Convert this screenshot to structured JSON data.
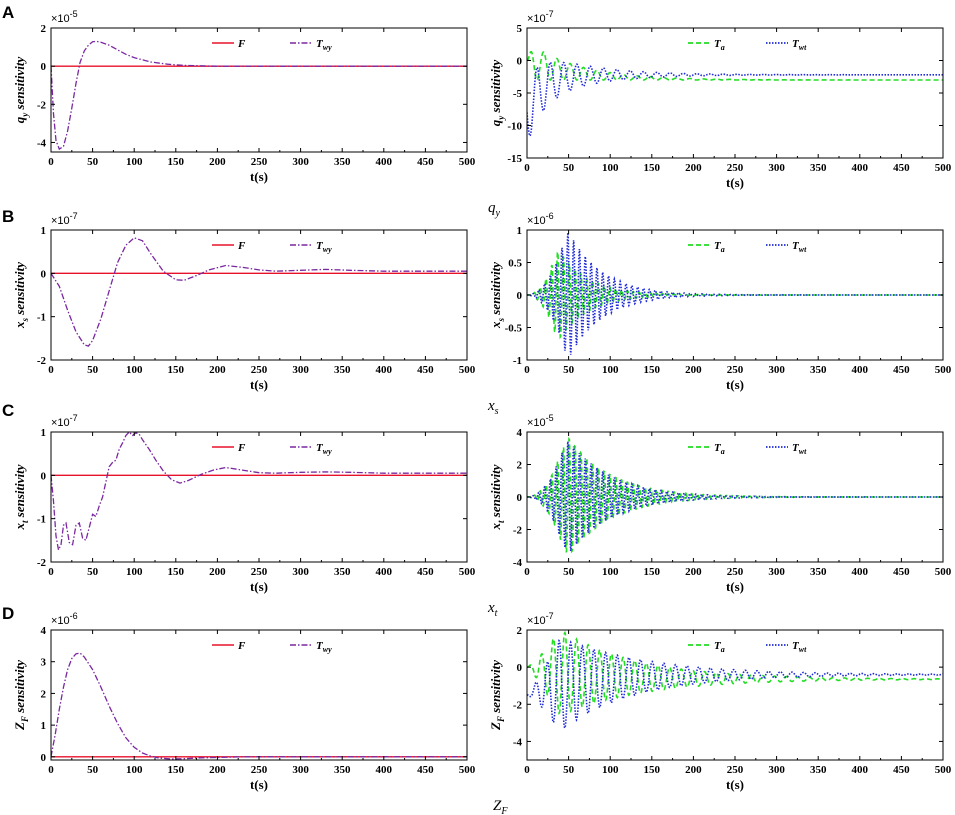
{
  "panels": [
    {
      "letter": "A",
      "caption": "q",
      "caption_sub": "y"
    },
    {
      "letter": "B",
      "caption": "x",
      "caption_sub": "s"
    },
    {
      "letter": "C",
      "caption": "x",
      "caption_sub": "t"
    },
    {
      "letter": "D",
      "caption": "Z",
      "caption_sub": "F"
    }
  ],
  "colors": {
    "F": "#e8102a",
    "Twy": "#7a28a0",
    "Ta": "#22dd22",
    "Twt": "#1f2bd8"
  },
  "chart_data": [
    {
      "id": "A-left",
      "type": "line",
      "ylabel": "q",
      "ylabel_sub": "y",
      "ylabel_rest": " sensitivity",
      "xlabel": "t(s)",
      "exp_base": "×10",
      "exp_power": "-5",
      "xlim": [
        0,
        500
      ],
      "ylim": [
        -4.5,
        2
      ],
      "xticks": [
        0,
        50,
        100,
        150,
        200,
        250,
        300,
        350,
        400,
        450,
        500
      ],
      "yticks": [
        -4,
        -2,
        0,
        2
      ],
      "series": [
        {
          "name": "F",
          "legend_main": "F",
          "legend_sub": "",
          "color_key": "F",
          "dash": "",
          "points": [
            [
              0,
              0
            ],
            [
              500,
              0
            ]
          ]
        },
        {
          "name": "Twy",
          "legend_main": "T",
          "legend_sub": "wy",
          "color_key": "Twy",
          "dash": "6,2,1.5,2",
          "points": [
            [
              0,
              0
            ],
            [
              3,
              -2.5
            ],
            [
              6,
              -3.9
            ],
            [
              10,
              -4.35
            ],
            [
              15,
              -4.2
            ],
            [
              20,
              -3.4
            ],
            [
              25,
              -2.2
            ],
            [
              30,
              -0.9
            ],
            [
              35,
              0.2
            ],
            [
              40,
              0.8
            ],
            [
              45,
              1.1
            ],
            [
              50,
              1.28
            ],
            [
              55,
              1.3
            ],
            [
              60,
              1.25
            ],
            [
              70,
              1.1
            ],
            [
              80,
              0.85
            ],
            [
              90,
              0.62
            ],
            [
              100,
              0.45
            ],
            [
              120,
              0.22
            ],
            [
              140,
              0.1
            ],
            [
              160,
              0.04
            ],
            [
              180,
              0.02
            ],
            [
              200,
              0
            ],
            [
              500,
              0
            ]
          ]
        }
      ]
    },
    {
      "id": "A-right",
      "type": "line",
      "ylabel": "q",
      "ylabel_sub": "y",
      "ylabel_rest": " sensitivity",
      "xlabel": "t(s)",
      "exp_base": "×10",
      "exp_power": "-7",
      "xlim": [
        0,
        500
      ],
      "ylim": [
        -15,
        5
      ],
      "xticks": [
        0,
        50,
        100,
        150,
        200,
        250,
        300,
        350,
        400,
        450,
        500
      ],
      "yticks": [
        -15,
        -10,
        -5,
        0,
        5
      ],
      "series": [
        {
          "name": "Ta",
          "legend_main": "T",
          "legend_sub": "a",
          "color_key": "Ta",
          "dash": "5,3",
          "osc": {
            "base_start": 0,
            "base_end": -3,
            "tau_base": 60,
            "amp": 3,
            "tau_amp": 60,
            "period": 16,
            "phase": 0,
            "ramp": 8
          }
        },
        {
          "name": "Twt",
          "legend_main": "T",
          "legend_sub": "wt",
          "color_key": "Twt",
          "dash": "1.5,1.5",
          "osc": {
            "base_start": -8,
            "base_end": -2.2,
            "tau_base": 18,
            "amp": 5,
            "tau_amp": 60,
            "period": 16,
            "phase": 3.14,
            "ramp": 0
          }
        }
      ]
    },
    {
      "id": "B-left",
      "type": "line",
      "ylabel": "x",
      "ylabel_sub": "s",
      "ylabel_rest": " sensitivity",
      "xlabel": "t(s)",
      "exp_base": "×10",
      "exp_power": "-7",
      "xlim": [
        0,
        500
      ],
      "ylim": [
        -2,
        1
      ],
      "xticks": [
        0,
        50,
        100,
        150,
        200,
        250,
        300,
        350,
        400,
        450,
        500
      ],
      "yticks": [
        -2,
        -1,
        0,
        1
      ],
      "series": [
        {
          "name": "F",
          "legend_main": "F",
          "legend_sub": "",
          "color_key": "F",
          "dash": "",
          "points": [
            [
              0,
              0
            ],
            [
              500,
              0
            ]
          ]
        },
        {
          "name": "Twy",
          "legend_main": "T",
          "legend_sub": "wy",
          "color_key": "Twy",
          "dash": "6,2,1.5,2",
          "points": [
            [
              0,
              0
            ],
            [
              10,
              -0.3
            ],
            [
              20,
              -0.85
            ],
            [
              30,
              -1.35
            ],
            [
              40,
              -1.65
            ],
            [
              45,
              -1.68
            ],
            [
              50,
              -1.55
            ],
            [
              60,
              -1.05
            ],
            [
              70,
              -0.4
            ],
            [
              80,
              0.25
            ],
            [
              90,
              0.65
            ],
            [
              100,
              0.82
            ],
            [
              110,
              0.75
            ],
            [
              120,
              0.45
            ],
            [
              135,
              0.05
            ],
            [
              150,
              -0.15
            ],
            [
              160,
              -0.16
            ],
            [
              175,
              -0.05
            ],
            [
              190,
              0.08
            ],
            [
              210,
              0.18
            ],
            [
              230,
              0.14
            ],
            [
              250,
              0.08
            ],
            [
              270,
              0.05
            ],
            [
              300,
              0.07
            ],
            [
              330,
              0.09
            ],
            [
              360,
              0.07
            ],
            [
              400,
              0.05
            ],
            [
              450,
              0.05
            ],
            [
              500,
              0.05
            ]
          ]
        }
      ]
    },
    {
      "id": "B-right",
      "type": "line",
      "ylabel": "x",
      "ylabel_sub": "s",
      "ylabel_rest": " sensitivity",
      "xlabel": "t(s)",
      "exp_base": "×10",
      "exp_power": "-6",
      "xlim": [
        0,
        500
      ],
      "ylim": [
        -1,
        1
      ],
      "xticks": [
        0,
        50,
        100,
        150,
        200,
        250,
        300,
        350,
        400,
        450,
        500
      ],
      "yticks": [
        -1,
        -0.5,
        0,
        0.5,
        1
      ],
      "series": [
        {
          "name": "Ta",
          "legend_main": "T",
          "legend_sub": "a",
          "color_key": "Ta",
          "dash": "5,3",
          "osc": {
            "base_start": 0,
            "base_end": 0,
            "tau_base": 50,
            "amp": 0.7,
            "tau_amp": 22,
            "amp_peak_t": 38,
            "period": 7,
            "phase": 0,
            "ramp": 0
          }
        },
        {
          "name": "Twt",
          "legend_main": "T",
          "legend_sub": "wt",
          "color_key": "Twt",
          "dash": "1.5,1.5",
          "osc": {
            "base_start": 0,
            "base_end": 0,
            "tau_base": 50,
            "amp": 0.98,
            "tau_amp": 25,
            "amp_peak_t": 50,
            "period": 7,
            "phase": 1.5,
            "ramp": 0
          }
        }
      ]
    },
    {
      "id": "C-left",
      "type": "line",
      "ylabel": "x",
      "ylabel_sub": "t",
      "ylabel_rest": " sensitivity",
      "xlabel": "t(s)",
      "exp_base": "×10",
      "exp_power": "-7",
      "xlim": [
        0,
        500
      ],
      "ylim": [
        -2,
        1
      ],
      "xticks": [
        0,
        50,
        100,
        150,
        200,
        250,
        300,
        350,
        400,
        450,
        500
      ],
      "yticks": [
        -2,
        -1,
        0,
        1
      ],
      "series": [
        {
          "name": "F",
          "legend_main": "F",
          "legend_sub": "",
          "color_key": "F",
          "dash": "",
          "points": [
            [
              0,
              0
            ],
            [
              500,
              0
            ]
          ]
        },
        {
          "name": "Twy",
          "legend_main": "T",
          "legend_sub": "wy",
          "color_key": "Twy",
          "dash": "6,2,1.5,2",
          "points": [
            [
              0,
              0
            ],
            [
              3,
              -0.6
            ],
            [
              6,
              -1.4
            ],
            [
              9,
              -1.72
            ],
            [
              12,
              -1.6
            ],
            [
              15,
              -1.15
            ],
            [
              18,
              -1.1
            ],
            [
              22,
              -1.55
            ],
            [
              26,
              -1.6
            ],
            [
              30,
              -1.15
            ],
            [
              34,
              -1.1
            ],
            [
              38,
              -1.45
            ],
            [
              42,
              -1.5
            ],
            [
              46,
              -1.2
            ],
            [
              50,
              -0.9
            ],
            [
              54,
              -0.95
            ],
            [
              58,
              -0.7
            ],
            [
              62,
              -0.5
            ],
            [
              66,
              -0.15
            ],
            [
              70,
              0.2
            ],
            [
              74,
              0.3
            ],
            [
              78,
              0.35
            ],
            [
              82,
              0.6
            ],
            [
              86,
              0.75
            ],
            [
              90,
              0.92
            ],
            [
              94,
              1.0
            ],
            [
              98,
              0.92
            ],
            [
              102,
              0.98
            ],
            [
              106,
              0.95
            ],
            [
              110,
              0.82
            ],
            [
              118,
              0.6
            ],
            [
              126,
              0.35
            ],
            [
              135,
              0.1
            ],
            [
              145,
              -0.1
            ],
            [
              155,
              -0.18
            ],
            [
              165,
              -0.12
            ],
            [
              180,
              0.02
            ],
            [
              195,
              0.12
            ],
            [
              210,
              0.18
            ],
            [
              230,
              0.12
            ],
            [
              250,
              0.06
            ],
            [
              270,
              0.05
            ],
            [
              300,
              0.07
            ],
            [
              330,
              0.08
            ],
            [
              360,
              0.07
            ],
            [
              400,
              0.05
            ],
            [
              450,
              0.05
            ],
            [
              500,
              0.05
            ]
          ]
        }
      ]
    },
    {
      "id": "C-right",
      "type": "line",
      "ylabel": "x",
      "ylabel_sub": "t",
      "ylabel_rest": " sensitivity",
      "xlabel": "t(s)",
      "exp_base": "×10",
      "exp_power": "-5",
      "xlim": [
        0,
        500
      ],
      "ylim": [
        -4,
        4
      ],
      "xticks": [
        0,
        50,
        100,
        150,
        200,
        250,
        300,
        350,
        400,
        450,
        500
      ],
      "yticks": [
        -4,
        -2,
        0,
        2,
        4
      ],
      "series": [
        {
          "name": "Ta",
          "legend_main": "T",
          "legend_sub": "a",
          "color_key": "Ta",
          "dash": "5,3",
          "osc": {
            "base_start": 0,
            "base_end": 0,
            "tau_base": 50,
            "amp": 3.7,
            "tau_amp": 32,
            "amp_peak_t": 50,
            "period": 7,
            "phase": 0,
            "ramp": 0
          }
        },
        {
          "name": "Twt",
          "legend_main": "T",
          "legend_sub": "wt",
          "color_key": "Twt",
          "dash": "1.5,1.5",
          "osc": {
            "base_start": 0,
            "base_end": 0,
            "tau_base": 50,
            "amp": 3.5,
            "tau_amp": 32,
            "amp_peak_t": 50,
            "period": 7,
            "phase": 1.5,
            "ramp": 0
          }
        }
      ]
    },
    {
      "id": "D-left",
      "type": "line",
      "ylabel": "Z",
      "ylabel_sub": "F",
      "ylabel_rest": " sensitivity",
      "xlabel": "t(s)",
      "exp_base": "×10",
      "exp_power": "-6",
      "xlim": [
        0,
        500
      ],
      "ylim": [
        -0.1,
        4
      ],
      "xticks": [
        0,
        50,
        100,
        150,
        200,
        250,
        300,
        350,
        400,
        450,
        500
      ],
      "yticks": [
        0,
        1,
        2,
        3,
        4
      ],
      "series": [
        {
          "name": "F",
          "legend_main": "F",
          "legend_sub": "",
          "color_key": "F",
          "dash": "",
          "points": [
            [
              0,
              0
            ],
            [
              500,
              0
            ]
          ]
        },
        {
          "name": "Twy",
          "legend_main": "T",
          "legend_sub": "wy",
          "color_key": "Twy",
          "dash": "6,2,1.5,2",
          "points": [
            [
              0,
              0
            ],
            [
              5,
              0.7
            ],
            [
              10,
              1.5
            ],
            [
              15,
              2.2
            ],
            [
              20,
              2.75
            ],
            [
              25,
              3.1
            ],
            [
              30,
              3.25
            ],
            [
              35,
              3.27
            ],
            [
              40,
              3.15
            ],
            [
              50,
              2.75
            ],
            [
              60,
              2.2
            ],
            [
              70,
              1.6
            ],
            [
              80,
              1.05
            ],
            [
              90,
              0.6
            ],
            [
              100,
              0.3
            ],
            [
              110,
              0.12
            ],
            [
              120,
              0.02
            ],
            [
              130,
              -0.04
            ],
            [
              145,
              -0.07
            ],
            [
              160,
              -0.06
            ],
            [
              180,
              -0.03
            ],
            [
              200,
              -0.02
            ],
            [
              230,
              0
            ],
            [
              500,
              0
            ]
          ]
        }
      ]
    },
    {
      "id": "D-right",
      "type": "line",
      "ylabel": "Z",
      "ylabel_sub": "F",
      "ylabel_rest": " sensitivity",
      "xlabel": "t(s)",
      "exp_base": "×10",
      "exp_power": "-7",
      "xlim": [
        0,
        500
      ],
      "ylim": [
        -5,
        2
      ],
      "xticks": [
        0,
        50,
        100,
        150,
        200,
        250,
        300,
        350,
        400,
        450,
        500
      ],
      "yticks": [
        -4,
        -2,
        0,
        2
      ],
      "series": [
        {
          "name": "Ta",
          "legend_main": "T",
          "legend_sub": "a",
          "color_key": "Ta",
          "dash": "5,3",
          "osc": {
            "base_start": 0,
            "base_end": -0.65,
            "tau_base": 70,
            "amp": 2.3,
            "tau_amp": 60,
            "amp_peak_t": 40,
            "period": 14,
            "phase": 0,
            "ramp": 0
          }
        },
        {
          "name": "Twt",
          "legend_main": "T",
          "legend_sub": "wt",
          "color_key": "Twt",
          "dash": "1.5,1.5",
          "osc": {
            "base_start": -1.5,
            "base_end": -0.4,
            "tau_base": 60,
            "amp": 2.5,
            "tau_amp": 60,
            "amp_peak_t": 40,
            "period": 14,
            "phase": 3.14,
            "ramp": 0
          }
        }
      ]
    }
  ]
}
